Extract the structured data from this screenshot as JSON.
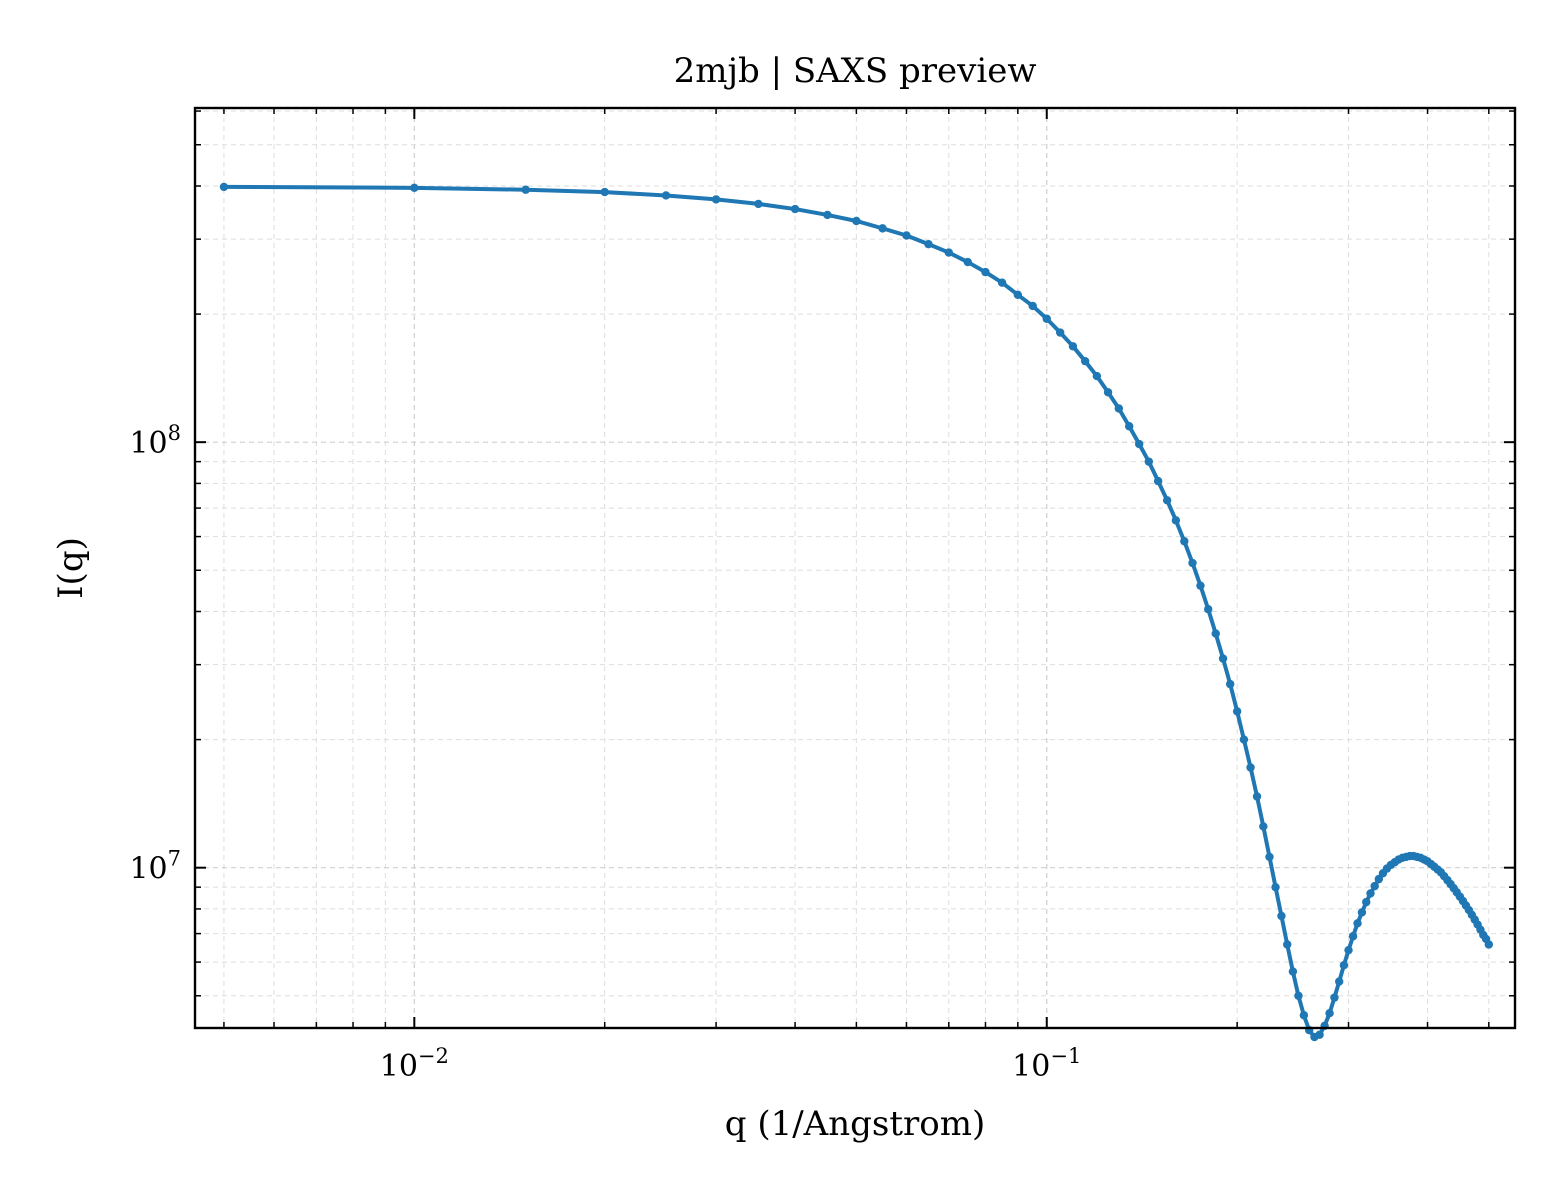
{
  "chart_data": {
    "type": "line",
    "title": "2mjb | SAXS preview",
    "xlabel": "q (1/Angstrom)",
    "ylabel": "I(q)",
    "xscale": "log",
    "yscale": "log",
    "xlim": [
      0.0045,
      0.55
    ],
    "ylim": [
      4200000,
      610000000
    ],
    "grid": true,
    "legend": "none",
    "x_ticks": [
      {
        "value": 0.01,
        "base": "10",
        "exp": "−2"
      },
      {
        "value": 0.1,
        "base": "10",
        "exp": "−1"
      }
    ],
    "y_ticks": [
      {
        "value": 10000000,
        "base": "10",
        "exp": "7"
      },
      {
        "value": 100000000,
        "base": "10",
        "exp": "8"
      }
    ],
    "series": [
      {
        "color": "#1f77b4",
        "marker": "circle",
        "points": [
          [
            0.005,
            398000000
          ],
          [
            0.01,
            396000000
          ],
          [
            0.015,
            392000000
          ],
          [
            0.02,
            387000000
          ],
          [
            0.025,
            380000000
          ],
          [
            0.03,
            372000000
          ],
          [
            0.035,
            363000000
          ],
          [
            0.04,
            353000000
          ],
          [
            0.045,
            342000000
          ],
          [
            0.05,
            331000000
          ],
          [
            0.055,
            318000000
          ],
          [
            0.06,
            306000000
          ],
          [
            0.065,
            292000000
          ],
          [
            0.07,
            279000000
          ],
          [
            0.075,
            265000000
          ],
          [
            0.08,
            251000000
          ],
          [
            0.085,
            237000000
          ],
          [
            0.09,
            222000000
          ],
          [
            0.095,
            209000000
          ],
          [
            0.1,
            195000000
          ],
          [
            0.105,
            181000000
          ],
          [
            0.11,
            168000000
          ],
          [
            0.115,
            155000000
          ],
          [
            0.12,
            143000000
          ],
          [
            0.125,
            131000000
          ],
          [
            0.13,
            120000000
          ],
          [
            0.135,
            109000000
          ],
          [
            0.14,
            99000000
          ],
          [
            0.145,
            90000000
          ],
          [
            0.15,
            81000000
          ],
          [
            0.155,
            73000000
          ],
          [
            0.16,
            65500000
          ],
          [
            0.165,
            58500000
          ],
          [
            0.17,
            52000000
          ],
          [
            0.175,
            46000000
          ],
          [
            0.18,
            40500000
          ],
          [
            0.185,
            35500000
          ],
          [
            0.19,
            31000000
          ],
          [
            0.195,
            27000000
          ],
          [
            0.2,
            23300000
          ],
          [
            0.205,
            20000000
          ],
          [
            0.21,
            17200000
          ],
          [
            0.215,
            14700000
          ],
          [
            0.22,
            12500000
          ],
          [
            0.225,
            10600000
          ],
          [
            0.23,
            9000000
          ],
          [
            0.235,
            7700000
          ],
          [
            0.24,
            6600000
          ],
          [
            0.245,
            5700000
          ],
          [
            0.25,
            5000000
          ],
          [
            0.255,
            4500000
          ],
          [
            0.26,
            4150000
          ],
          [
            0.265,
            4000000
          ],
          [
            0.27,
            4050000
          ],
          [
            0.275,
            4250000
          ],
          [
            0.28,
            4550000
          ],
          [
            0.285,
            4950000
          ],
          [
            0.29,
            5400000
          ],
          [
            0.295,
            5900000
          ],
          [
            0.3,
            6400000
          ],
          [
            0.305,
            6900000
          ],
          [
            0.31,
            7400000
          ],
          [
            0.315,
            7850000
          ],
          [
            0.32,
            8300000
          ],
          [
            0.325,
            8700000
          ],
          [
            0.33,
            9050000
          ],
          [
            0.335,
            9400000
          ],
          [
            0.34,
            9700000
          ],
          [
            0.345,
            9950000
          ],
          [
            0.35,
            10150000
          ],
          [
            0.355,
            10300000
          ],
          [
            0.36,
            10450000
          ],
          [
            0.365,
            10550000
          ],
          [
            0.37,
            10600000
          ],
          [
            0.375,
            10650000
          ],
          [
            0.38,
            10650000
          ],
          [
            0.385,
            10600000
          ],
          [
            0.39,
            10550000
          ],
          [
            0.395,
            10450000
          ],
          [
            0.4,
            10350000
          ],
          [
            0.405,
            10200000
          ],
          [
            0.41,
            10050000
          ],
          [
            0.415,
            9900000
          ],
          [
            0.42,
            9750000
          ],
          [
            0.425,
            9550000
          ],
          [
            0.43,
            9350000
          ],
          [
            0.435,
            9150000
          ],
          [
            0.44,
            8950000
          ],
          [
            0.445,
            8750000
          ],
          [
            0.45,
            8550000
          ],
          [
            0.455,
            8350000
          ],
          [
            0.46,
            8150000
          ],
          [
            0.465,
            7950000
          ],
          [
            0.47,
            7750000
          ],
          [
            0.475,
            7550000
          ],
          [
            0.48,
            7350000
          ],
          [
            0.485,
            7150000
          ],
          [
            0.49,
            6950000
          ],
          [
            0.495,
            6800000
          ],
          [
            0.5,
            6600000
          ]
        ]
      }
    ]
  }
}
